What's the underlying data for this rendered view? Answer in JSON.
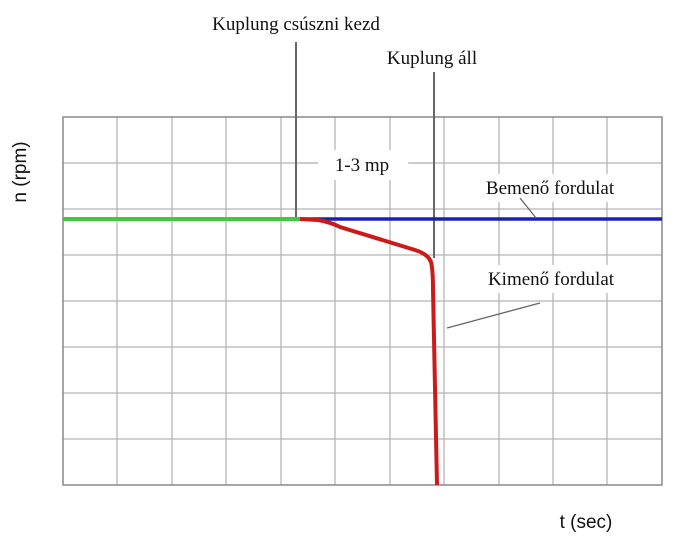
{
  "axes": {
    "y_label": "n (rpm)",
    "x_label": "t (sec)"
  },
  "annotations": {
    "slip_start": "Kuplung csúszni kezd",
    "stopped": "Kuplung áll",
    "duration": "1-3 mp",
    "input_speed": "Bemenő fordulat",
    "output_speed": "Kimenő fordulat"
  }
}
